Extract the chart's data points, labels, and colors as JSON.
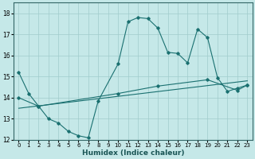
{
  "xlabel": "Humidex (Indice chaleur)",
  "background_color": "#c5e8e8",
  "grid_color": "#a0cccc",
  "line_color": "#1a7070",
  "xlim": [
    -0.5,
    23.5
  ],
  "ylim": [
    12,
    18.5
  ],
  "yticks": [
    12,
    13,
    14,
    15,
    16,
    17,
    18
  ],
  "xticks": [
    0,
    1,
    2,
    3,
    4,
    5,
    6,
    7,
    8,
    9,
    10,
    11,
    12,
    13,
    14,
    15,
    16,
    17,
    18,
    19,
    20,
    21,
    22,
    23
  ],
  "line1_x": [
    0,
    1,
    2,
    3,
    4,
    5,
    6,
    7,
    8,
    10,
    11,
    12,
    13,
    14,
    15,
    16,
    17,
    18,
    19,
    20,
    21,
    22,
    23
  ],
  "line1_y": [
    15.2,
    14.2,
    13.6,
    13.0,
    12.8,
    12.4,
    12.2,
    12.1,
    13.85,
    15.6,
    17.6,
    17.8,
    17.75,
    17.3,
    16.15,
    16.1,
    15.65,
    17.25,
    16.85,
    14.95,
    14.3,
    14.45,
    14.6
  ],
  "line2_x": [
    0,
    2,
    10,
    14,
    19,
    22,
    23
  ],
  "line2_y": [
    14.0,
    13.6,
    14.2,
    14.55,
    14.85,
    14.35,
    14.6
  ],
  "line3_x": [
    0,
    23
  ],
  "line3_y": [
    13.5,
    14.8
  ]
}
